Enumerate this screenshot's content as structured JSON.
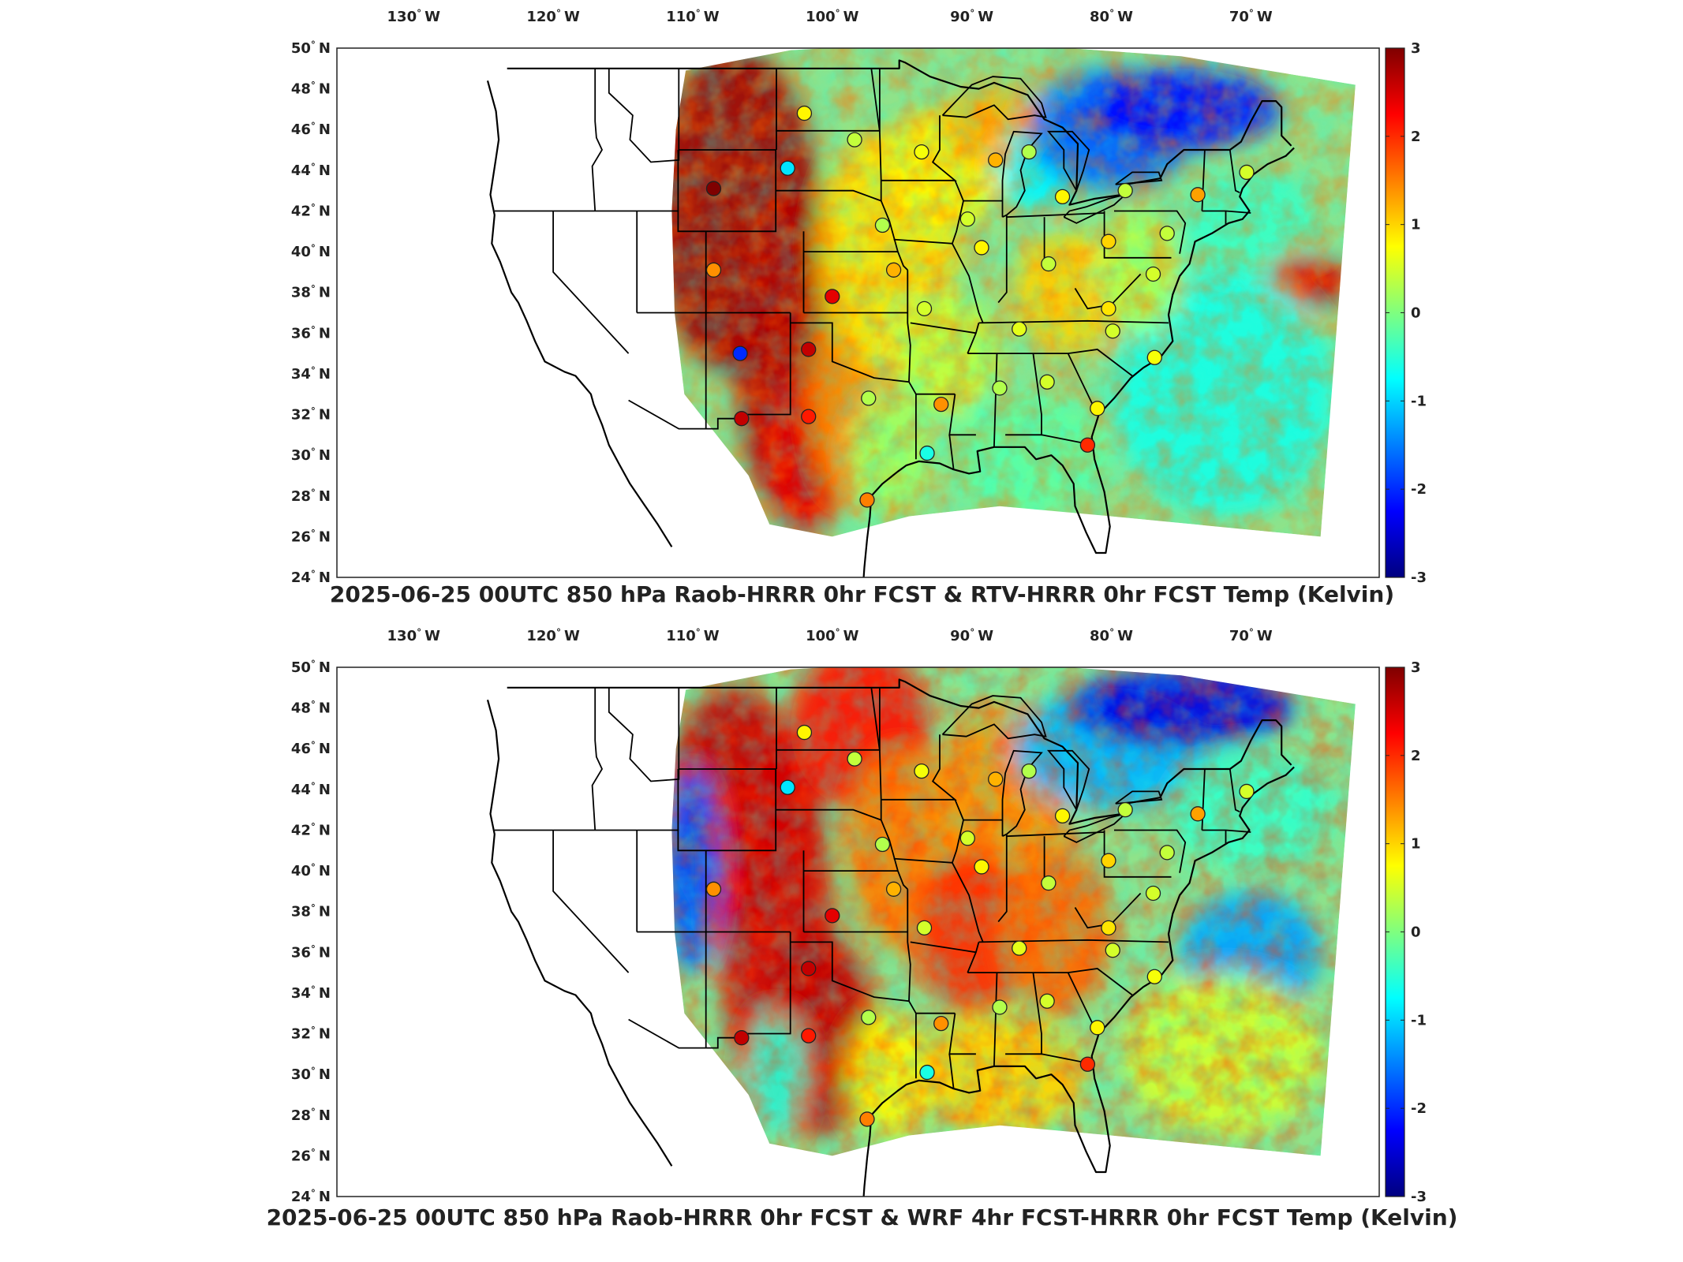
{
  "map_data": {
    "lon_ticks": [
      {
        "value": -130,
        "deg": "130",
        "hem": "W"
      },
      {
        "value": -120,
        "deg": "120",
        "hem": "W"
      },
      {
        "value": -110,
        "deg": "110",
        "hem": "W"
      },
      {
        "value": -100,
        "deg": "100",
        "hem": "W"
      },
      {
        "value": -90,
        "deg": "90",
        "hem": "W"
      },
      {
        "value": -80,
        "deg": "80",
        "hem": "W"
      },
      {
        "value": -70,
        "deg": "70",
        "hem": "W"
      }
    ],
    "lat_ticks": [
      {
        "value": 50,
        "deg": "50",
        "hem": "N"
      },
      {
        "value": 48,
        "deg": "48",
        "hem": "N"
      },
      {
        "value": 46,
        "deg": "46",
        "hem": "N"
      },
      {
        "value": 44,
        "deg": "44",
        "hem": "N"
      },
      {
        "value": 42,
        "deg": "42",
        "hem": "N"
      },
      {
        "value": 40,
        "deg": "40",
        "hem": "N"
      },
      {
        "value": 38,
        "deg": "38",
        "hem": "N"
      },
      {
        "value": 36,
        "deg": "36",
        "hem": "N"
      },
      {
        "value": 34,
        "deg": "34",
        "hem": "N"
      },
      {
        "value": 32,
        "deg": "32",
        "hem": "N"
      },
      {
        "value": 30,
        "deg": "30",
        "hem": "N"
      },
      {
        "value": 28,
        "deg": "28",
        "hem": "N"
      },
      {
        "value": 26,
        "deg": "26",
        "hem": "N"
      },
      {
        "value": 24,
        "deg": "24",
        "hem": "N"
      }
    ],
    "colorbar": {
      "min": -3,
      "max": 3,
      "ticks": [
        "3",
        "2",
        "1",
        "0",
        "-1",
        "-2",
        "-3"
      ],
      "colormap": [
        "#00007f",
        "#0000ff",
        "#007fff",
        "#00ffff",
        "#7fff7f",
        "#ffff00",
        "#ff7f00",
        "#ff0000",
        "#7f0000"
      ]
    },
    "panels": [
      {
        "title": "2025-06-25 00UTC 850 hPa Raob-HRRR 0hr FCST & RTV-HRRR 0hr FCST Temp (Kelvin)",
        "stations": [
          {
            "lon": -108.5,
            "lat": 43.1,
            "value": 3.0
          },
          {
            "lon": -108.5,
            "lat": 39.1,
            "value": 1.4
          },
          {
            "lon": -106.6,
            "lat": 35.0,
            "value": -2.0
          },
          {
            "lon": -101.7,
            "lat": 35.2,
            "value": 2.6
          },
          {
            "lon": -100.0,
            "lat": 37.8,
            "value": 2.4
          },
          {
            "lon": -103.2,
            "lat": 44.1,
            "value": -0.9
          },
          {
            "lon": -102.0,
            "lat": 46.8,
            "value": 0.8
          },
          {
            "lon": -98.4,
            "lat": 45.5,
            "value": 0.4
          },
          {
            "lon": -96.4,
            "lat": 41.3,
            "value": 0.3
          },
          {
            "lon": -95.6,
            "lat": 39.1,
            "value": 1.2
          },
          {
            "lon": -93.6,
            "lat": 44.9,
            "value": 0.7
          },
          {
            "lon": -90.3,
            "lat": 41.6,
            "value": 0.5
          },
          {
            "lon": -88.3,
            "lat": 44.5,
            "value": 1.2
          },
          {
            "lon": -85.9,
            "lat": 44.9,
            "value": 0.3
          },
          {
            "lon": -83.5,
            "lat": 42.7,
            "value": 0.8
          },
          {
            "lon": -79.0,
            "lat": 43.0,
            "value": 0.4
          },
          {
            "lon": -73.8,
            "lat": 42.8,
            "value": 1.3
          },
          {
            "lon": -70.3,
            "lat": 43.9,
            "value": 0.5
          },
          {
            "lon": -89.3,
            "lat": 40.2,
            "value": 0.8
          },
          {
            "lon": -84.5,
            "lat": 39.4,
            "value": 0.4
          },
          {
            "lon": -80.2,
            "lat": 40.5,
            "value": 1.0
          },
          {
            "lon": -93.4,
            "lat": 37.2,
            "value": 0.5
          },
          {
            "lon": -86.6,
            "lat": 36.2,
            "value": 0.6
          },
          {
            "lon": -80.2,
            "lat": 37.2,
            "value": 0.9
          },
          {
            "lon": -79.9,
            "lat": 36.1,
            "value": 0.5
          },
          {
            "lon": -97.4,
            "lat": 32.8,
            "value": 0.3
          },
          {
            "lon": -92.2,
            "lat": 32.5,
            "value": 1.4
          },
          {
            "lon": -88.0,
            "lat": 33.3,
            "value": 0.3
          },
          {
            "lon": -84.6,
            "lat": 33.6,
            "value": 0.5
          },
          {
            "lon": -81.0,
            "lat": 32.3,
            "value": 0.8
          },
          {
            "lon": -76.9,
            "lat": 34.8,
            "value": 0.7
          },
          {
            "lon": -76.0,
            "lat": 40.9,
            "value": 0.4
          },
          {
            "lon": -101.7,
            "lat": 31.9,
            "value": 2.1
          },
          {
            "lon": -106.5,
            "lat": 31.8,
            "value": 2.6
          },
          {
            "lon": -97.5,
            "lat": 27.8,
            "value": 1.5
          },
          {
            "lon": -93.2,
            "lat": 30.1,
            "value": -0.6
          },
          {
            "lon": -81.7,
            "lat": 30.5,
            "value": 2.0
          },
          {
            "lon": -77.0,
            "lat": 38.9,
            "value": 0.5
          }
        ]
      },
      {
        "title": "2025-06-25 00UTC 850 hPa Raob-HRRR 0hr FCST & WRF 4hr FCST-HRRR 0hr FCST Temp (Kelvin)",
        "stations": [
          {
            "lon": -108.5,
            "lat": 39.1,
            "value": 1.4
          },
          {
            "lon": -101.7,
            "lat": 35.2,
            "value": 2.6
          },
          {
            "lon": -100.0,
            "lat": 37.8,
            "value": 2.4
          },
          {
            "lon": -103.2,
            "lat": 44.1,
            "value": -0.9
          },
          {
            "lon": -102.0,
            "lat": 46.8,
            "value": 0.8
          },
          {
            "lon": -98.4,
            "lat": 45.5,
            "value": 0.4
          },
          {
            "lon": -96.4,
            "lat": 41.3,
            "value": 0.3
          },
          {
            "lon": -95.6,
            "lat": 39.1,
            "value": 1.2
          },
          {
            "lon": -93.6,
            "lat": 44.9,
            "value": 0.7
          },
          {
            "lon": -90.3,
            "lat": 41.6,
            "value": 0.5
          },
          {
            "lon": -88.3,
            "lat": 44.5,
            "value": 1.2
          },
          {
            "lon": -85.9,
            "lat": 44.9,
            "value": 0.3
          },
          {
            "lon": -83.5,
            "lat": 42.7,
            "value": 0.8
          },
          {
            "lon": -79.0,
            "lat": 43.0,
            "value": 0.4
          },
          {
            "lon": -73.8,
            "lat": 42.8,
            "value": 1.3
          },
          {
            "lon": -70.3,
            "lat": 43.9,
            "value": 0.5
          },
          {
            "lon": -89.3,
            "lat": 40.2,
            "value": 0.8
          },
          {
            "lon": -84.5,
            "lat": 39.4,
            "value": 0.4
          },
          {
            "lon": -80.2,
            "lat": 40.5,
            "value": 1.0
          },
          {
            "lon": -93.4,
            "lat": 37.2,
            "value": 0.5
          },
          {
            "lon": -86.6,
            "lat": 36.2,
            "value": 0.6
          },
          {
            "lon": -80.2,
            "lat": 37.2,
            "value": 0.9
          },
          {
            "lon": -79.9,
            "lat": 36.1,
            "value": 0.5
          },
          {
            "lon": -97.4,
            "lat": 32.8,
            "value": 0.3
          },
          {
            "lon": -92.2,
            "lat": 32.5,
            "value": 1.4
          },
          {
            "lon": -88.0,
            "lat": 33.3,
            "value": 0.3
          },
          {
            "lon": -84.6,
            "lat": 33.6,
            "value": 0.5
          },
          {
            "lon": -81.0,
            "lat": 32.3,
            "value": 0.8
          },
          {
            "lon": -76.9,
            "lat": 34.8,
            "value": 0.7
          },
          {
            "lon": -76.0,
            "lat": 40.9,
            "value": 0.4
          },
          {
            "lon": -101.7,
            "lat": 31.9,
            "value": 2.1
          },
          {
            "lon": -106.5,
            "lat": 31.8,
            "value": 2.6
          },
          {
            "lon": -97.5,
            "lat": 27.8,
            "value": 1.5
          },
          {
            "lon": -93.2,
            "lat": 30.1,
            "value": -0.6
          },
          {
            "lon": -81.7,
            "lat": 30.5,
            "value": 2.0
          },
          {
            "lon": -77.0,
            "lat": 38.9,
            "value": 0.5
          }
        ]
      }
    ]
  }
}
